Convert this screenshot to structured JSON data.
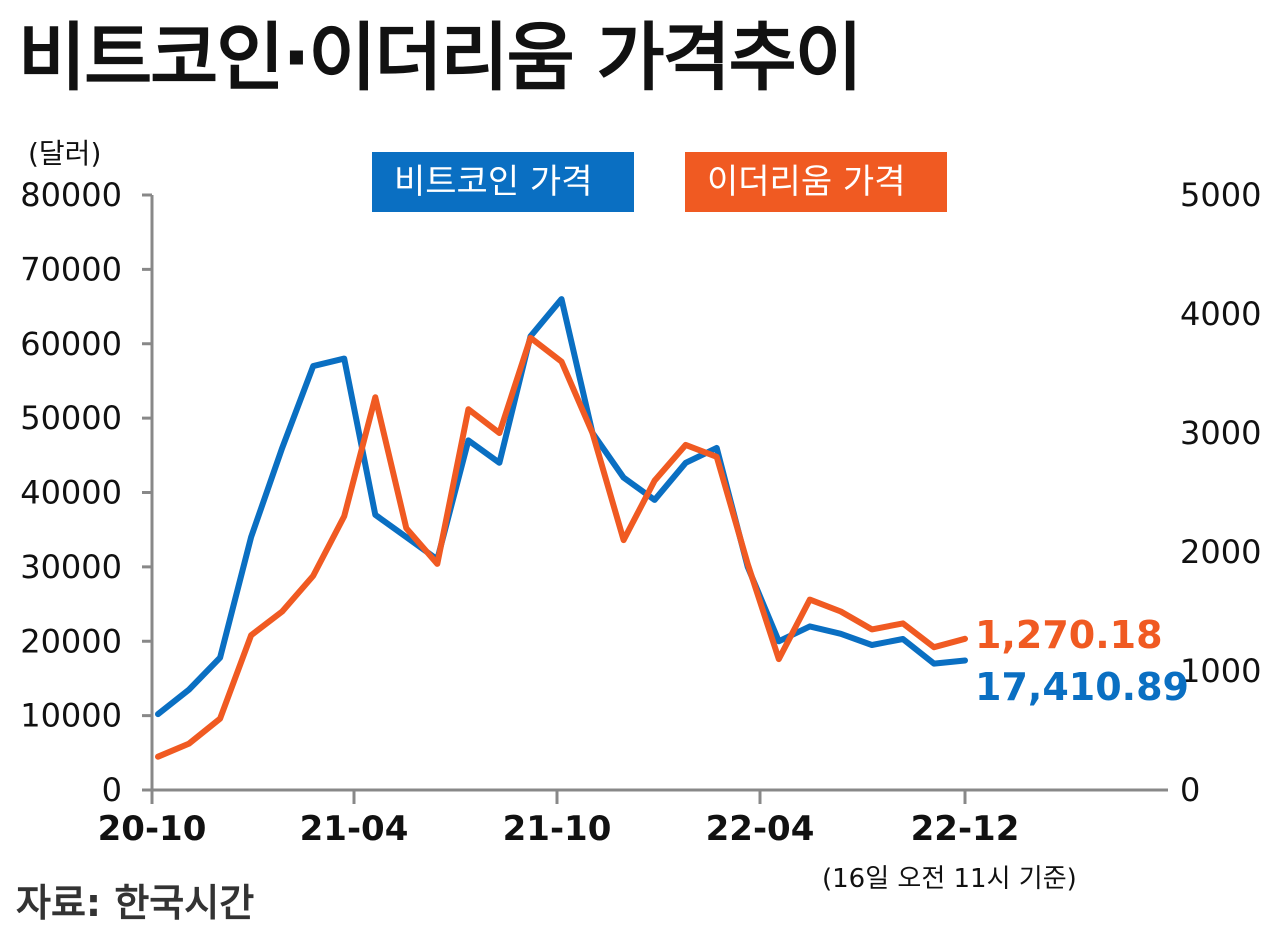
{
  "title": "비트코인·이더리움 가격추이",
  "note": "(16일 오전 11시 기준)",
  "source": "자료: 한국시간",
  "colors": {
    "btc": "#0a6fc2",
    "eth": "#f05a22",
    "axis": "#888888"
  },
  "chart_data": {
    "type": "line",
    "ylabel": "(달러)",
    "x_ticks": [
      "20-10",
      "21-04",
      "21-10",
      "22-04",
      "22-12"
    ],
    "y_left": {
      "ticks": [
        0,
        10000,
        20000,
        30000,
        40000,
        50000,
        60000,
        70000,
        80000
      ],
      "lim": [
        0,
        80000
      ]
    },
    "y_right": {
      "ticks": [
        0,
        1000,
        2000,
        3000,
        4000,
        5000
      ],
      "lim": [
        0,
        5000
      ]
    },
    "series": [
      {
        "name": "비트코인 가격",
        "axis": "left",
        "end_label": "17,410.89",
        "x": [
          "2020-10",
          "2020-11",
          "2020-12",
          "2021-01",
          "2021-02",
          "2021-03",
          "2021-04",
          "2021-05",
          "2021-06",
          "2021-07",
          "2021-08",
          "2021-09",
          "2021-10",
          "2021-11",
          "2021-12",
          "2022-01",
          "2022-02",
          "2022-03",
          "2022-04",
          "2022-05",
          "2022-06",
          "2022-07",
          "2022-08",
          "2022-09",
          "2022-10",
          "2022-11",
          "2022-12"
        ],
        "values": [
          10200,
          13500,
          17800,
          34000,
          46000,
          57000,
          58000,
          37000,
          34000,
          31000,
          47000,
          44000,
          61000,
          66000,
          48000,
          42000,
          39000,
          44000,
          46000,
          30000,
          20000,
          22000,
          21000,
          19500,
          20300,
          17000,
          17410.89
        ]
      },
      {
        "name": "이더리움 가격",
        "axis": "right",
        "end_label": "1,270.18",
        "x": [
          "2020-10",
          "2020-11",
          "2020-12",
          "2021-01",
          "2021-02",
          "2021-03",
          "2021-04",
          "2021-05",
          "2021-06",
          "2021-07",
          "2021-08",
          "2021-09",
          "2021-10",
          "2021-11",
          "2021-12",
          "2022-01",
          "2022-02",
          "2022-03",
          "2022-04",
          "2022-05",
          "2022-06",
          "2022-07",
          "2022-08",
          "2022-09",
          "2022-10",
          "2022-11",
          "2022-12"
        ],
        "values": [
          280,
          390,
          600,
          1300,
          1500,
          1800,
          2300,
          3300,
          2200,
          1900,
          3200,
          3000,
          3800,
          3600,
          3000,
          2100,
          2600,
          2900,
          2800,
          1900,
          1100,
          1600,
          1500,
          1350,
          1400,
          1200,
          1270.18
        ]
      }
    ]
  }
}
